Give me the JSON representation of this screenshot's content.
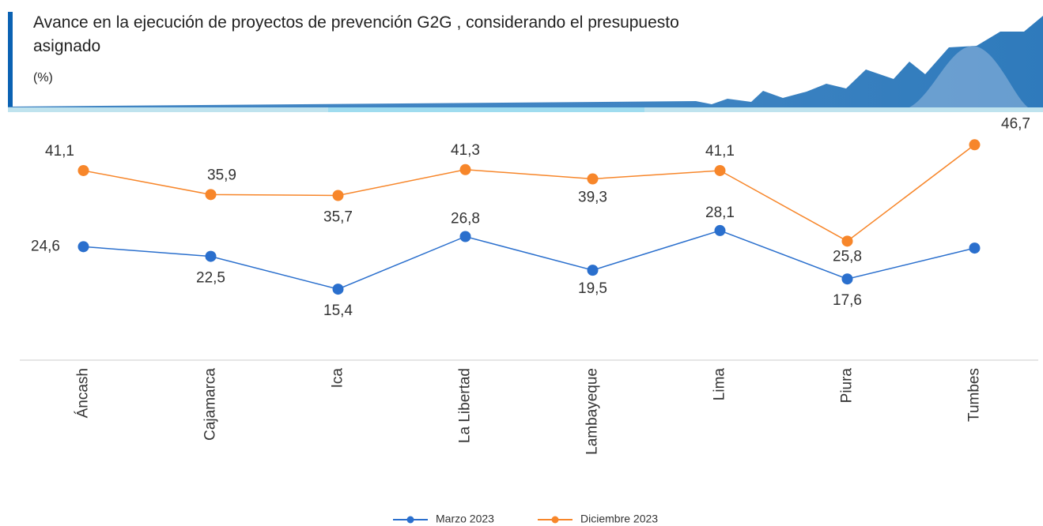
{
  "chart_data": {
    "type": "line",
    "title": "Avance en la ejecución de proyectos de prevención G2G , considerando el presupuesto asignado",
    "subtitle": "(%)",
    "categories": [
      "Áncash",
      "Cajamarca",
      "Ica",
      "La Libertad",
      "Lambayeque",
      "Lima",
      "Piura",
      "Tumbes"
    ],
    "series": [
      {
        "name": "Marzo 2023",
        "color": "#2a6fcd",
        "values": [
          24.6,
          22.5,
          15.4,
          26.8,
          19.5,
          28.1,
          17.6,
          24.3
        ],
        "value_labels": [
          "24,6",
          "22,5",
          "15,4",
          "26,8",
          "19,5",
          "28,1",
          "17,6",
          null
        ]
      },
      {
        "name": "Diciembre 2023",
        "color": "#f7862a",
        "values": [
          41.1,
          35.9,
          35.7,
          41.3,
          39.3,
          41.1,
          25.8,
          46.7
        ],
        "value_labels": [
          "41,1",
          "35,9",
          "35,7",
          "41,3",
          "39,3",
          "41,1",
          "25,8",
          "46,7"
        ]
      }
    ],
    "ylim": [
      0,
      50
    ],
    "grid": false,
    "legend": "bottom"
  }
}
